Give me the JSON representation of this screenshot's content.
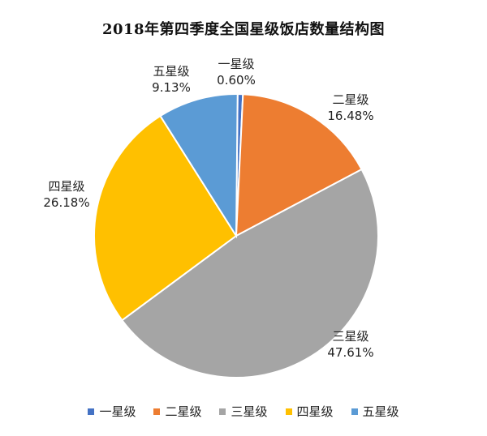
{
  "chart_data": {
    "type": "pie",
    "title": "2018年第四季度全国星级饭店数量结构图",
    "categories": [
      "一星级",
      "二星级",
      "三星级",
      "四星级",
      "五星级"
    ],
    "values": [
      0.6,
      16.48,
      47.61,
      26.18,
      9.13
    ],
    "value_labels": [
      "0.60%",
      "16.48%",
      "47.61%",
      "26.18%",
      "9.13%"
    ],
    "colors": [
      "#4472C4",
      "#ED7D31",
      "#A5A5A5",
      "#FFC000",
      "#5B9BD5"
    ],
    "legend": {
      "position": "bottom",
      "entries": [
        "一星级",
        "二星级",
        "三星级",
        "四星级",
        "五星级"
      ]
    }
  }
}
